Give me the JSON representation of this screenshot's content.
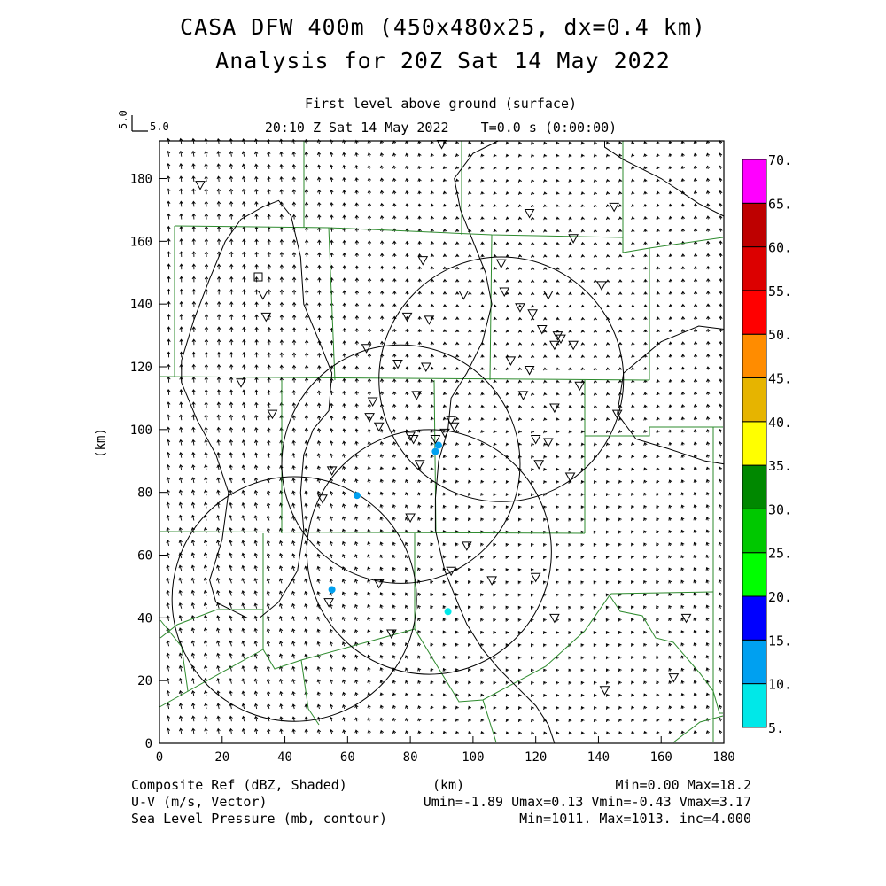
{
  "header": {
    "title_line1": "CASA DFW 400m (450x480x25, dx=0.4 km)",
    "title_line2": "Analysis for 20Z Sat 14 May 2022",
    "subtitle_line1": "First level above ground (surface)",
    "subtitle_line2": "20:10 Z Sat 14 May 2022    T=0.0 s (0:00:00)"
  },
  "vector_key": {
    "u_label": "5.0",
    "v_label": "5.0"
  },
  "footer": {
    "left_line1": "Composite Ref (dBZ, Shaded)",
    "left_line2": "U-V (m/s, Vector)",
    "left_line3": "Sea Level Pressure (mb, contour)",
    "center_unit": "(km)",
    "right_line1": "Min=0.00 Max=18.2",
    "right_line2": "Umin=-1.89 Umax=0.13 Vmin=-0.43 Vmax=3.17",
    "right_line3": "Min=1011. Max=1013. inc=4.000"
  },
  "chart_data": {
    "type": "map",
    "xlabel": "",
    "ylabel": "(km)",
    "xlim": [
      0,
      180
    ],
    "ylim": [
      0,
      192
    ],
    "x_ticks": [
      0,
      20,
      40,
      60,
      80,
      100,
      120,
      140,
      160,
      180
    ],
    "y_ticks": [
      0,
      20,
      40,
      60,
      80,
      100,
      120,
      140,
      160,
      180
    ],
    "grid": false,
    "colorbar": {
      "labels": [
        "5.",
        "10.",
        "15.",
        "20.",
        "25.",
        "30.",
        "35.",
        "40.",
        "45.",
        "50.",
        "55.",
        "60.",
        "65.",
        "70."
      ],
      "colors": [
        "#00e8e8",
        "#00a0f0",
        "#0000ff",
        "#00ff00",
        "#00c800",
        "#008800",
        "#ffff00",
        "#e6b400",
        "#ff8c00",
        "#ff0000",
        "#dc0000",
        "#be0000",
        "#ff00ff"
      ]
    },
    "radar_rings": [
      {
        "cx": 43,
        "cy": 46,
        "r": 39
      },
      {
        "cx": 77,
        "cy": 89,
        "r": 38
      },
      {
        "cx": 109,
        "cy": 116,
        "r": 39
      },
      {
        "cx": 86,
        "cy": 61,
        "r": 39
      }
    ],
    "stations": [
      [
        13,
        178
      ],
      [
        118,
        169
      ],
      [
        145,
        171
      ],
      [
        132,
        161
      ],
      [
        84,
        154
      ],
      [
        109,
        153
      ],
      [
        141,
        146
      ],
      [
        33,
        143
      ],
      [
        97,
        143
      ],
      [
        110,
        144
      ],
      [
        124,
        143
      ],
      [
        34,
        136
      ],
      [
        79,
        136
      ],
      [
        86,
        135
      ],
      [
        115,
        139
      ],
      [
        119,
        137
      ],
      [
        122,
        132
      ],
      [
        127,
        130
      ],
      [
        128,
        129
      ],
      [
        126,
        127
      ],
      [
        132,
        127
      ],
      [
        66,
        126
      ],
      [
        76,
        121
      ],
      [
        85,
        120
      ],
      [
        112,
        122
      ],
      [
        118,
        119
      ],
      [
        26,
        115
      ],
      [
        134,
        114
      ],
      [
        82,
        111
      ],
      [
        68,
        109
      ],
      [
        36,
        105
      ],
      [
        116,
        111
      ],
      [
        126,
        107
      ],
      [
        146,
        105
      ],
      [
        67,
        104
      ],
      [
        70,
        101
      ],
      [
        93,
        103
      ],
      [
        94,
        101
      ],
      [
        80,
        98
      ],
      [
        81,
        97
      ],
      [
        88,
        97
      ],
      [
        91,
        99
      ],
      [
        120,
        97
      ],
      [
        124,
        96
      ],
      [
        121,
        89
      ],
      [
        83,
        89
      ],
      [
        131,
        85
      ],
      [
        55,
        87
      ],
      [
        52,
        78
      ],
      [
        80,
        72
      ],
      [
        98,
        63
      ],
      [
        93,
        55
      ],
      [
        120,
        53
      ],
      [
        106,
        52
      ],
      [
        70,
        51
      ],
      [
        54,
        45
      ],
      [
        126,
        40
      ],
      [
        168,
        40
      ],
      [
        74,
        35
      ],
      [
        142,
        17
      ],
      [
        164,
        21
      ],
      [
        90,
        191
      ]
    ],
    "reflectivity_cells": [
      {
        "x": 89,
        "y": 95,
        "dbz": 10
      },
      {
        "x": 88,
        "y": 93,
        "dbz": 12
      },
      {
        "x": 63,
        "y": 79,
        "dbz": 12
      },
      {
        "x": 55,
        "y": 49,
        "dbz": 10
      },
      {
        "x": 92,
        "y": 42,
        "dbz": 6
      }
    ],
    "pressure_contours": [
      {
        "label": "",
        "points": [
          [
            32,
            40
          ],
          [
            38,
            45
          ],
          [
            44,
            55
          ],
          [
            46,
            68
          ],
          [
            45,
            80
          ],
          [
            46,
            92
          ],
          [
            49,
            100
          ],
          [
            54,
            106
          ],
          [
            55,
            118
          ],
          [
            51,
            128
          ],
          [
            46,
            140
          ],
          [
            45,
            155
          ],
          [
            42,
            168
          ],
          [
            38,
            173
          ],
          [
            33,
            171
          ],
          [
            26,
            167
          ],
          [
            21,
            160
          ],
          [
            16,
            148
          ],
          [
            11,
            135
          ],
          [
            7,
            122
          ],
          [
            7,
            115
          ],
          [
            12,
            103
          ],
          [
            18,
            92
          ],
          [
            22,
            80
          ],
          [
            20,
            65
          ],
          [
            16,
            52
          ],
          [
            18,
            45
          ],
          [
            24,
            42
          ],
          [
            28,
            40
          ]
        ]
      },
      {
        "label": "",
        "points": [
          [
            180,
            132
          ],
          [
            172,
            133
          ],
          [
            160,
            128
          ],
          [
            148,
            118
          ],
          [
            146,
            105
          ],
          [
            152,
            97
          ],
          [
            162,
            94
          ],
          [
            174,
            90
          ],
          [
            180,
            89
          ]
        ]
      },
      {
        "label": "",
        "points": [
          [
            180,
            168
          ],
          [
            172,
            172
          ],
          [
            160,
            180
          ],
          [
            148,
            186
          ],
          [
            142,
            190
          ],
          [
            142,
            192
          ]
        ]
      },
      {
        "label": "",
        "points": [
          [
            108,
            192
          ],
          [
            100,
            188
          ],
          [
            94,
            180
          ],
          [
            96,
            170
          ],
          [
            100,
            160
          ],
          [
            104,
            150
          ],
          [
            106,
            140
          ],
          [
            103,
            128
          ],
          [
            98,
            118
          ],
          [
            93,
            110
          ],
          [
            92,
            100
          ],
          [
            89,
            90
          ],
          [
            88,
            78
          ],
          [
            88,
            68
          ],
          [
            91,
            55
          ],
          [
            95,
            45
          ],
          [
            98,
            38
          ],
          [
            103,
            30
          ],
          [
            108,
            24
          ],
          [
            114,
            18
          ],
          [
            120,
            12
          ],
          [
            124,
            6
          ],
          [
            126,
            0
          ]
        ]
      }
    ],
    "vector_field_note": "uniform light southerly flow, turning slightly"
  }
}
